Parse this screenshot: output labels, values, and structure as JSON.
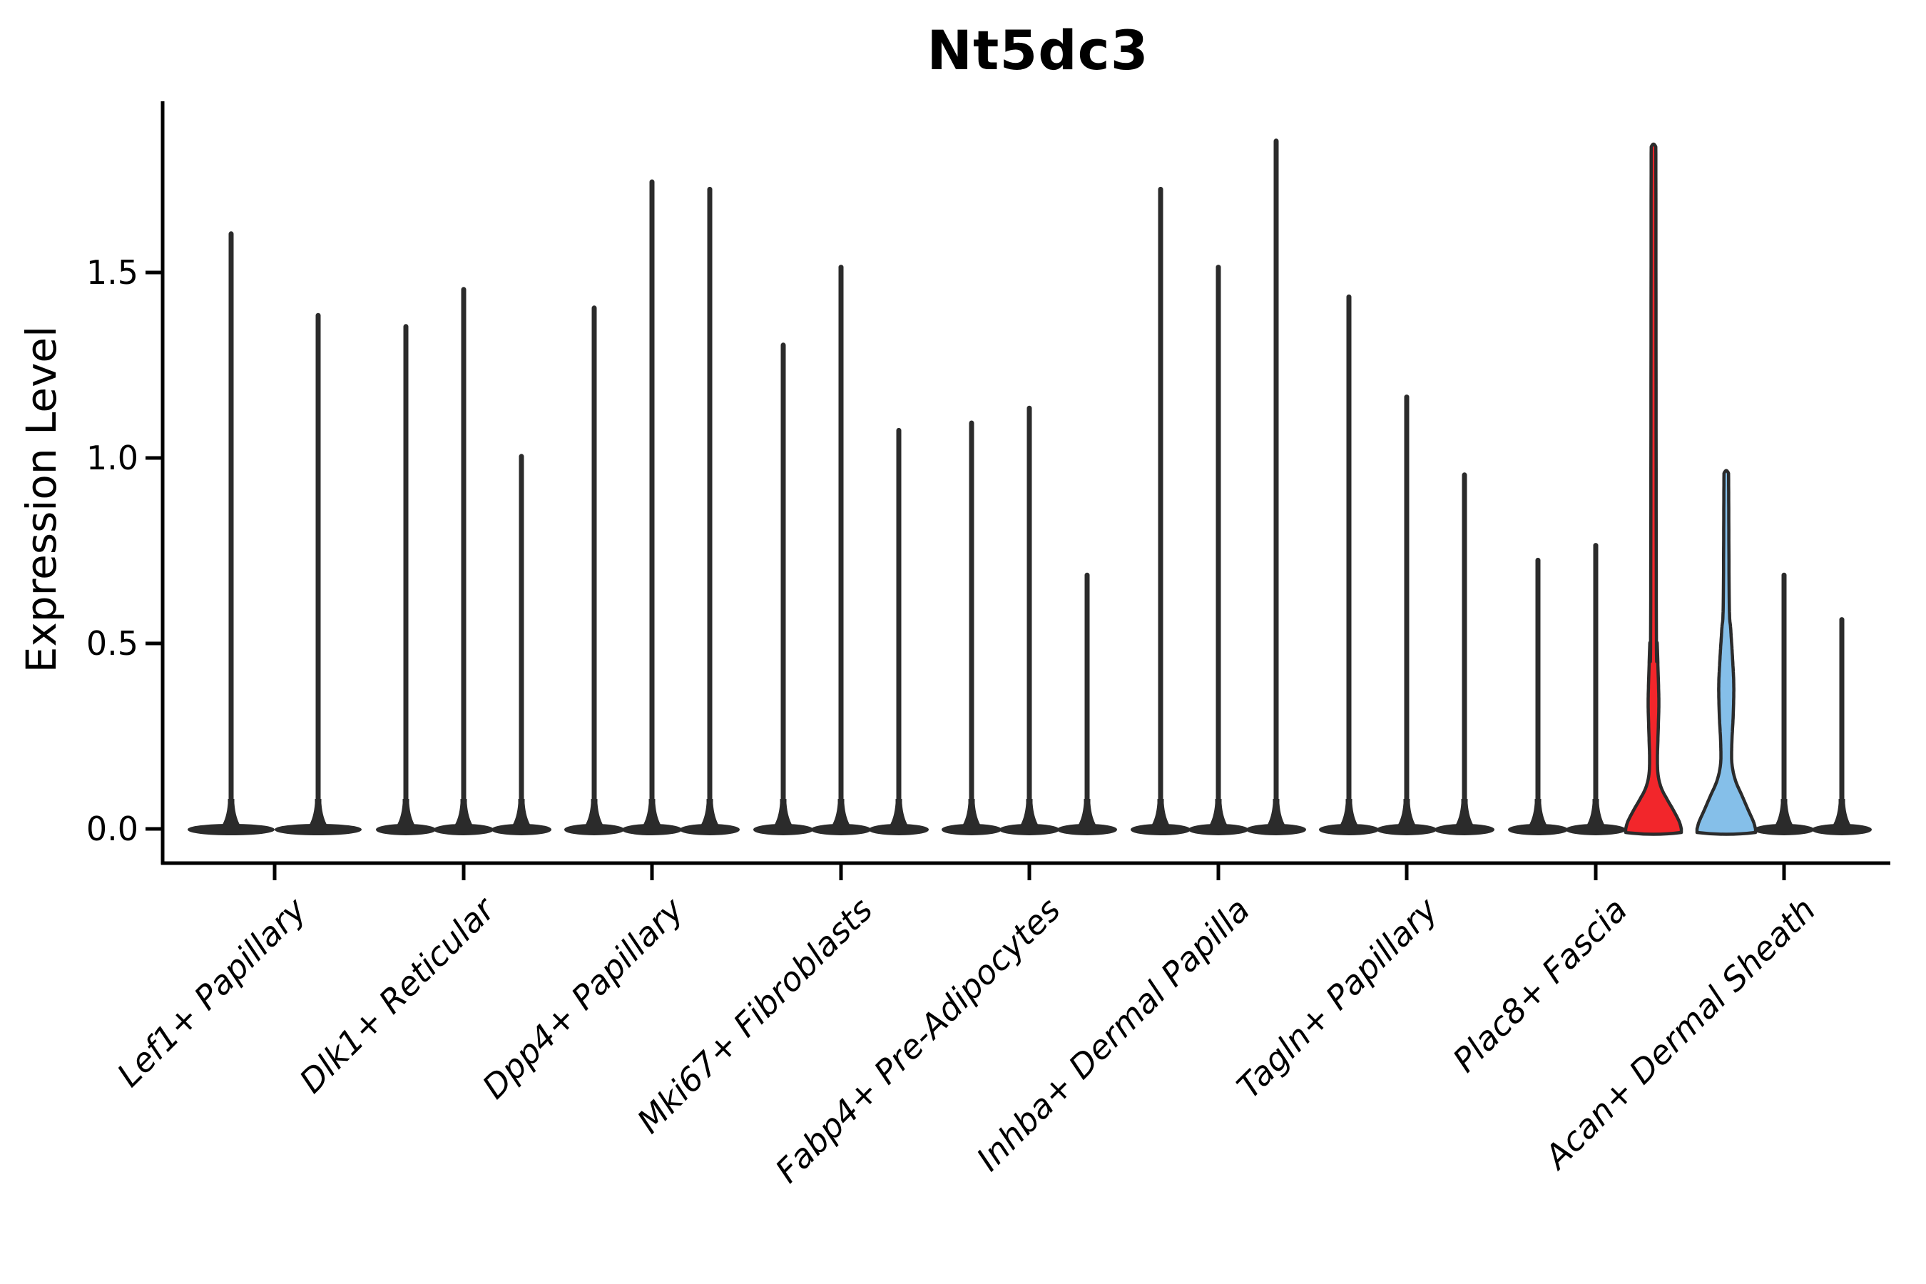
{
  "title": "Nt5dc3",
  "y_axis": {
    "label": "Expression Level",
    "ticks": [
      "0.0",
      "0.5",
      "1.0",
      "1.5"
    ],
    "tick_values": [
      0.0,
      0.5,
      1.0,
      1.5
    ]
  },
  "colors": {
    "highlight_red": "#F2262B",
    "highlight_blue": "#85BFE9",
    "violin_ink": "#2B2B2B",
    "axis_ink": "#000000",
    "background": "#FFFFFF"
  },
  "chart_data": {
    "type": "violin",
    "title": "Nt5dc3",
    "xlabel": "",
    "ylabel": "Expression Level",
    "ylim": [
      0,
      1.96
    ],
    "yticks": [
      0.0,
      0.5,
      1.0,
      1.5
    ],
    "grid": false,
    "legend": "none",
    "note": "Single-cell gene expression violin plot. Most violins collapse to a flat density at 0 with a thin spike to the maximum expressing cell. Two violins are highlighted: the third violin of Plac8+ Fascia (red) and the first violin of Acan+ Dermal Sheath (blue), both showing a visible low-expression density bulge.",
    "categories": [
      {
        "label": "Lef1+ Papillary",
        "violins": [
          {
            "max_expression": 1.61,
            "fill": "none"
          },
          {
            "max_expression": 1.39,
            "fill": "none"
          }
        ]
      },
      {
        "label": "Dlk1+ Reticular",
        "violins": [
          {
            "max_expression": 1.36,
            "fill": "none"
          },
          {
            "max_expression": 1.46,
            "fill": "none"
          },
          {
            "max_expression": 1.01,
            "fill": "none"
          }
        ]
      },
      {
        "label": "Dpp4+ Papillary",
        "violins": [
          {
            "max_expression": 1.41,
            "fill": "none"
          },
          {
            "max_expression": 1.75,
            "fill": "none"
          },
          {
            "max_expression": 1.73,
            "fill": "none"
          }
        ]
      },
      {
        "label": "Mki67+ Fibroblasts",
        "violins": [
          {
            "max_expression": 1.31,
            "fill": "none"
          },
          {
            "max_expression": 1.52,
            "fill": "none"
          },
          {
            "max_expression": 1.08,
            "fill": "none"
          }
        ]
      },
      {
        "label": "Fabp4+ Pre-Adipocytes",
        "violins": [
          {
            "max_expression": 1.1,
            "fill": "none"
          },
          {
            "max_expression": 1.14,
            "fill": "none"
          },
          {
            "max_expression": 0.69,
            "fill": "none"
          }
        ]
      },
      {
        "label": "Inhba+ Dermal Papilla",
        "violins": [
          {
            "max_expression": 1.73,
            "fill": "none"
          },
          {
            "max_expression": 1.52,
            "fill": "none"
          },
          {
            "max_expression": 1.86,
            "fill": "none"
          }
        ]
      },
      {
        "label": "Tagln+ Papillary",
        "violins": [
          {
            "max_expression": 1.44,
            "fill": "none"
          },
          {
            "max_expression": 1.17,
            "fill": "none"
          },
          {
            "max_expression": 0.96,
            "fill": "none"
          }
        ]
      },
      {
        "label": "Plac8+ Fascia",
        "violins": [
          {
            "max_expression": 0.73,
            "fill": "none"
          },
          {
            "max_expression": 0.77,
            "fill": "none"
          },
          {
            "max_expression": 1.85,
            "fill": "red",
            "density_profile": [
              [
                0,
                39
              ],
              [
                0.02,
                36
              ],
              [
                0.05,
                28
              ],
              [
                0.08,
                19
              ],
              [
                0.11,
                11
              ],
              [
                0.145,
                6.5
              ],
              [
                0.19,
                5.5
              ],
              [
                0.26,
                6.5
              ],
              [
                0.34,
                7.5
              ],
              [
                0.42,
                6.5
              ],
              [
                0.5,
                5.2
              ],
              [
                0.56,
                4.0
              ]
            ]
          }
        ]
      },
      {
        "label": "Acan+ Dermal Sheath",
        "violins": [
          {
            "max_expression": 0.97,
            "fill": "blue",
            "density_profile": [
              [
                0,
                41
              ],
              [
                0.02,
                38
              ],
              [
                0.05,
                31
              ],
              [
                0.09,
                22
              ],
              [
                0.13,
                13
              ],
              [
                0.175,
                8
              ],
              [
                0.23,
                7.8
              ],
              [
                0.31,
                9.8
              ],
              [
                0.39,
                10.5
              ],
              [
                0.47,
                8.5
              ],
              [
                0.54,
                6.2
              ],
              [
                0.61,
                4.2
              ]
            ]
          },
          {
            "max_expression": 0.69,
            "fill": "none"
          },
          {
            "max_expression": 0.57,
            "fill": "none"
          }
        ]
      }
    ]
  }
}
